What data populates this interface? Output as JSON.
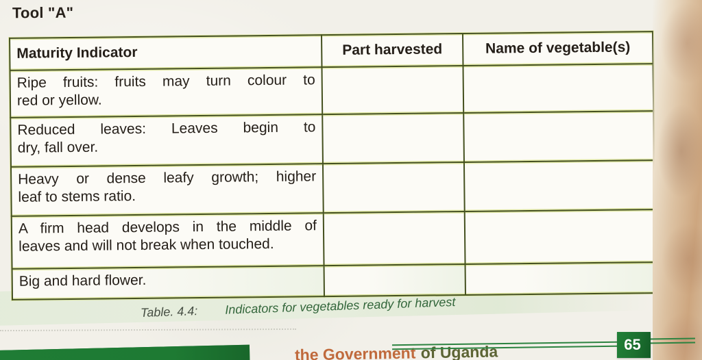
{
  "page": {
    "title": "Tool \"A\""
  },
  "table": {
    "headers": [
      "Maturity Indicator",
      "Part harvested",
      "Name of vegetable(s)"
    ],
    "rows": [
      {
        "lines": [
          "Ripe fruits: fruits may turn colour to",
          "red or yellow."
        ]
      },
      {
        "lines": [
          "Reduced leaves: Leaves begin to",
          "dry, fall over."
        ]
      },
      {
        "lines": [
          "Heavy or dense leafy growth; higher",
          "leaf to stems ratio."
        ]
      },
      {
        "lines": [
          "A firm head develops in the middle of",
          "leaves and will not break when touched."
        ]
      },
      {
        "lines": [
          "Big and hard flower."
        ]
      }
    ],
    "caption_label": "Table. 4.4:",
    "caption_text": "Indicators for vegetables ready for harvest"
  },
  "footer": {
    "fragment_left": "the Government",
    "fragment_right": "of Uganda",
    "page_number": "65"
  },
  "colors": {
    "page_badge_green": "#1d7130",
    "rule_green": "#2c8340",
    "footer_bar_green": "#1e7a33",
    "table_border_olive": "#44501f",
    "caption_green": "#33663b"
  }
}
